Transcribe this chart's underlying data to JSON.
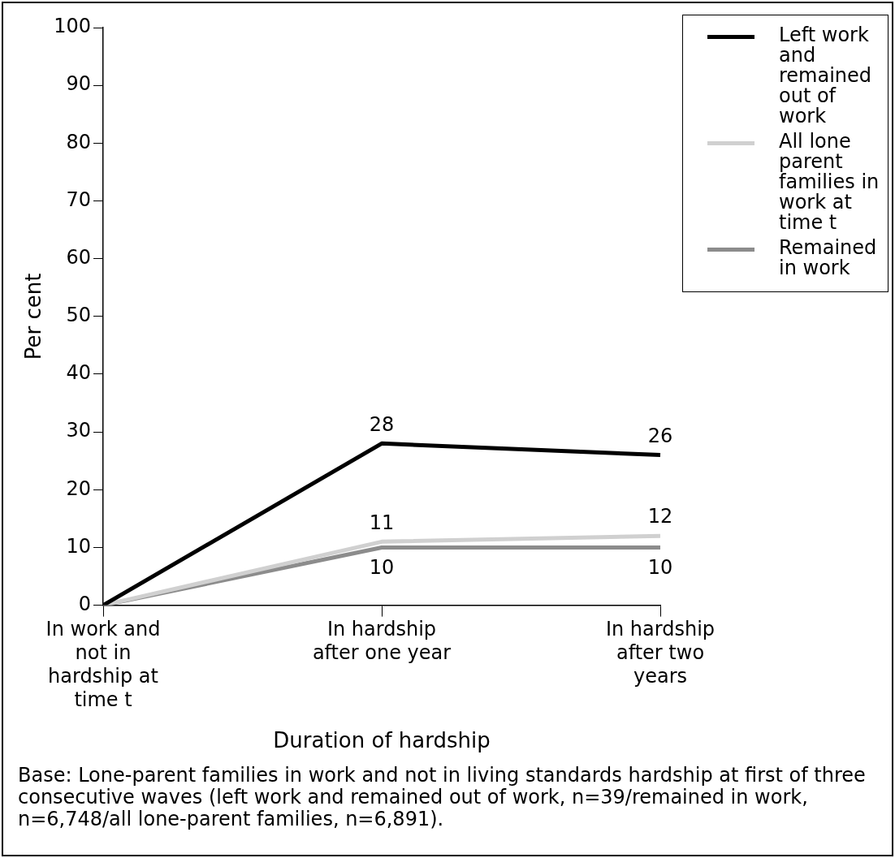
{
  "chart_data": {
    "type": "line",
    "xlabel": "Duration of hardship",
    "ylabel": "Per cent",
    "categories": [
      "In work and not in hardship at time t",
      "In hardship after one year",
      "In hardship after two years"
    ],
    "series": [
      {
        "name": "Left work and remained out of work",
        "color": "#000000",
        "values": [
          0,
          28,
          26
        ],
        "value_labels": [
          null,
          "28",
          "26"
        ]
      },
      {
        "name": "All lone parent families in work at time t",
        "color": "#d0d0d0",
        "values": [
          0,
          11,
          12
        ],
        "value_labels": [
          null,
          "11",
          "12"
        ]
      },
      {
        "name": "Remained in work",
        "color": "#8c8c8c",
        "values": [
          0,
          10,
          10
        ],
        "value_labels": [
          null,
          "10",
          "10"
        ]
      }
    ],
    "ylim": [
      0,
      100
    ],
    "yticks": [
      0,
      10,
      20,
      30,
      40,
      50,
      60,
      70,
      80,
      90,
      100
    ],
    "grid": false,
    "legend": "top right",
    "marker": "none",
    "line_style": "solid",
    "annotations": [
      "Base: Lone-parent families in work and not in living standards hardship at first of three consecutive waves (left work and remained out of work, n=39/remained in work, n=6,748/all lone-parent families, n=6,891)."
    ]
  }
}
